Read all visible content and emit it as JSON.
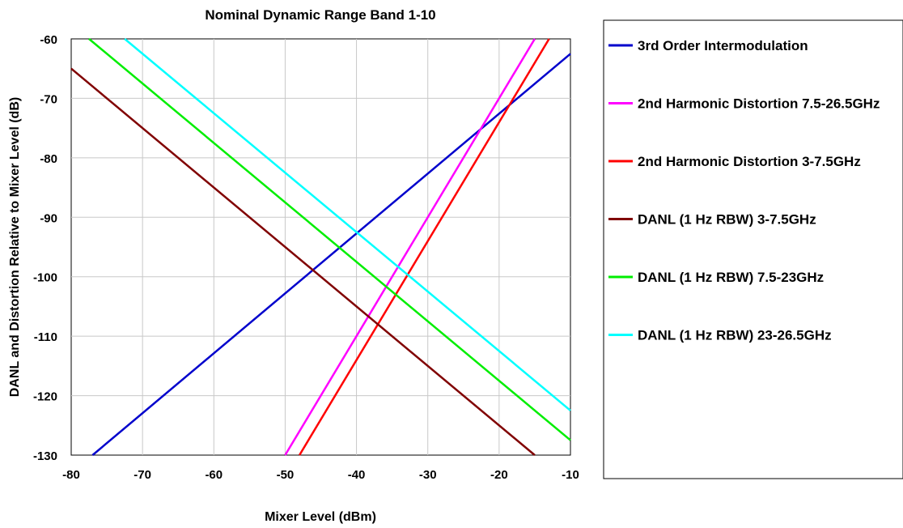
{
  "chart_data": {
    "type": "line",
    "title": "Nominal Dynamic Range Band 1-10",
    "xlabel": "Mixer Level (dBm)",
    "ylabel": "DANL and Distortion Relative to Mixer Level (dB)",
    "xlim": [
      -80,
      -10
    ],
    "ylim": [
      -130,
      -60
    ],
    "xticks": [
      "-80",
      "-70",
      "-60",
      "-50",
      "-40",
      "-30",
      "-20",
      "-10"
    ],
    "yticks": [
      "-60",
      "-70",
      "-80",
      "-90",
      "-100",
      "-110",
      "-120",
      "-130"
    ],
    "grid": true,
    "legend_position": "right",
    "series": [
      {
        "name": "3rd Order Intermodulation",
        "color": "#0000cc",
        "points": [
          [
            -77,
            -130
          ],
          [
            -10,
            -62.5
          ]
        ]
      },
      {
        "name": "2nd Harmonic Distortion 7.5-26.5GHz",
        "color": "#ff00ff",
        "points": [
          [
            -50,
            -130
          ],
          [
            -15,
            -60
          ]
        ]
      },
      {
        "name": "2nd Harmonic Distortion 3-7.5GHz",
        "color": "#ff0000",
        "points": [
          [
            -48,
            -130
          ],
          [
            -13,
            -60
          ]
        ]
      },
      {
        "name": "DANL (1 Hz RBW) 3-7.5GHz",
        "color": "#800000",
        "points": [
          [
            -80,
            -65
          ],
          [
            -15,
            -130
          ]
        ]
      },
      {
        "name": "DANL (1 Hz RBW) 7.5-23GHz",
        "color": "#00ee00",
        "points": [
          [
            -77.5,
            -60
          ],
          [
            -10,
            -127.5
          ]
        ]
      },
      {
        "name": "DANL (1 Hz RBW) 23-26.5GHz",
        "color": "#00ffff",
        "points": [
          [
            -72.5,
            -60
          ],
          [
            -10,
            -122.5
          ]
        ]
      }
    ]
  }
}
